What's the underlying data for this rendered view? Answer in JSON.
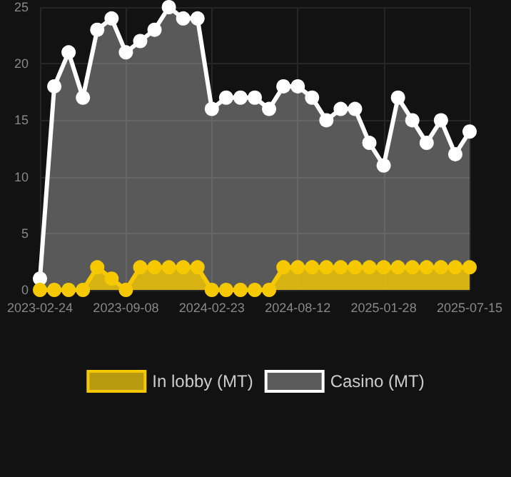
{
  "chart_data": {
    "type": "area",
    "categories": [
      "2023-02-24",
      null,
      null,
      null,
      null,
      null,
      "2023-09-08",
      null,
      null,
      null,
      null,
      null,
      "2024-02-23",
      null,
      null,
      null,
      null,
      null,
      "2024-08-12",
      null,
      null,
      null,
      null,
      null,
      "2025-01-28",
      null,
      null,
      null,
      null,
      null,
      "2025-07-15"
    ],
    "series": [
      {
        "name": "In lobby (MT)",
        "color": "#f5c800",
        "values": [
          0,
          0,
          0,
          0,
          2,
          1,
          0,
          2,
          2,
          2,
          2,
          2,
          0,
          0,
          0,
          0,
          0,
          2,
          2,
          2,
          2,
          2,
          2,
          2,
          2,
          2,
          2,
          2,
          2,
          2,
          2
        ]
      },
      {
        "name": "Casino (MT)",
        "color": "#ffffff",
        "values": [
          1,
          18,
          21,
          17,
          23,
          24,
          21,
          22,
          23,
          25,
          24,
          24,
          16,
          17,
          17,
          17,
          16,
          18,
          18,
          17,
          15,
          16,
          16,
          13,
          11,
          17,
          15,
          13,
          15,
          12,
          14
        ]
      }
    ],
    "ylim": [
      0,
      25
    ],
    "yticks": [
      0,
      5,
      10,
      15,
      20,
      25
    ],
    "grid": true,
    "legend": "bottom",
    "marker": "circle"
  }
}
